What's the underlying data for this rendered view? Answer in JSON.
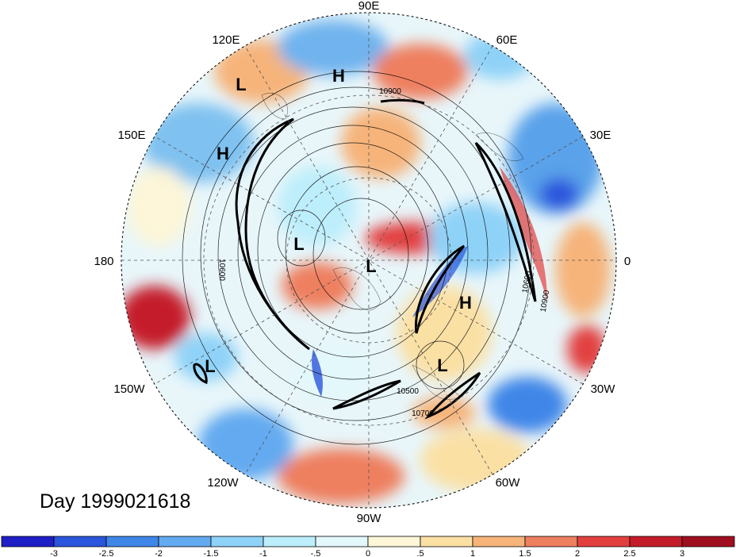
{
  "day_label": "Day 1999021618",
  "longitude_labels": [
    "90E",
    "60E",
    "30E",
    "0",
    "30W",
    "60W",
    "90W",
    "120W",
    "150W",
    "180",
    "150E",
    "120E"
  ],
  "pressure_centers": [
    "L",
    "H",
    "H",
    "L",
    "L",
    "H",
    "L",
    "L"
  ],
  "contour_labels": [
    "10900",
    "10500",
    "10700",
    "10600",
    "10600",
    "10900"
  ],
  "colorbar": {
    "tick_labels": [
      "-3",
      "-2.5",
      "-2",
      "-1.5",
      "-1",
      "-.5",
      "0",
      ".5",
      "1",
      "1.5",
      "2",
      "2.5",
      "3"
    ],
    "colors": [
      "#1f1fc8",
      "#2a55dc",
      "#3f86e8",
      "#64aaf0",
      "#8fd2f8",
      "#bdeefb",
      "#e3f8fb",
      "#fdf6d8",
      "#fbe0a4",
      "#f6b47a",
      "#ee7f5f",
      "#e2403f",
      "#c41c2a",
      "#a00f20"
    ]
  },
  "legend_colors": {
    "background": "#ffffff",
    "frame": "#000000"
  }
}
